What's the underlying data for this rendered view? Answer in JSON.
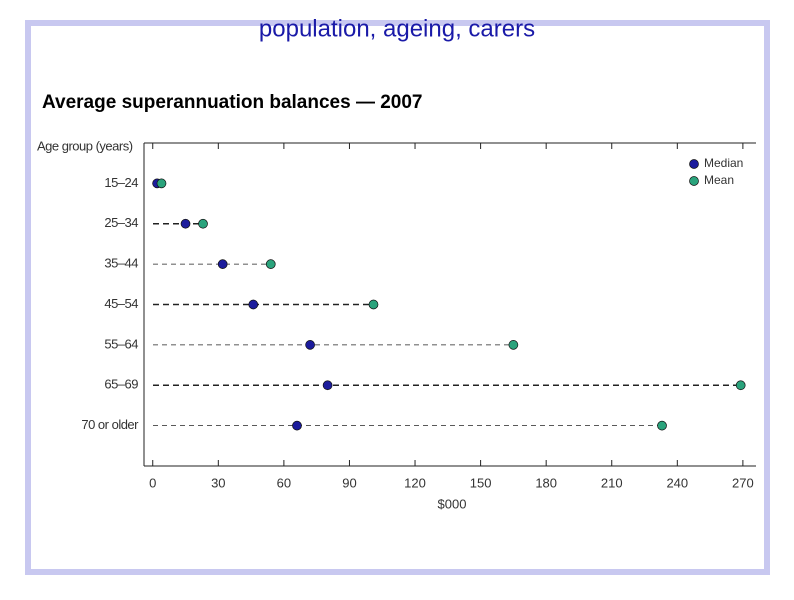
{
  "header": {
    "title": "population, ageing, carers"
  },
  "chart_data": {
    "type": "dotplot",
    "title": "Average superannuation balances — 2007",
    "y_label": "Age group (years)",
    "x_label": "$000",
    "categories": [
      "15–24",
      "25–34",
      "35–44",
      "45–54",
      "55–64",
      "65–69",
      "70 or older"
    ],
    "series": [
      {
        "name": "Median",
        "color": "#1c1c9c",
        "values": [
          2,
          15,
          32,
          46,
          72,
          80,
          66
        ]
      },
      {
        "name": "Mean",
        "color": "#2aa37c",
        "values": [
          4,
          23,
          54,
          101,
          165,
          269,
          233
        ]
      }
    ],
    "xlim": [
      -4,
      276
    ],
    "xticks": [
      0,
      30,
      60,
      90,
      120,
      150,
      180,
      210,
      240,
      270
    ],
    "legend": "top-right"
  }
}
